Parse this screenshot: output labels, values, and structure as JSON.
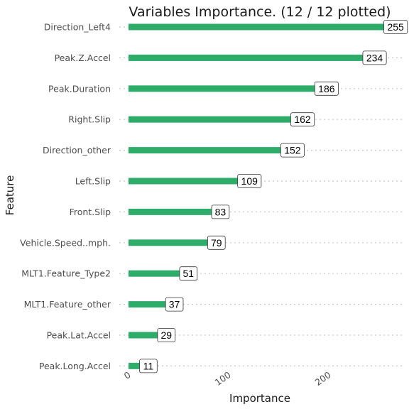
{
  "chart_data": {
    "type": "bar",
    "orientation": "horizontal",
    "title": "Variables Importance. (12 / 12 plotted)",
    "xlabel": "Importance",
    "ylabel": "Feature",
    "xlim": [
      0,
      257
    ],
    "xticks": [
      0,
      100,
      200
    ],
    "grid": "dotted horizontal gridlines per category",
    "bar_color": "#2EAD6A",
    "categories": [
      "Direction_Left4",
      "Peak.Z.Accel",
      "Peak.Duration",
      "Right.Slip",
      "Direction_other",
      "Left.Slip",
      "Front.Slip",
      "Vehicle.Speed..mph.",
      "MLT1.Feature_Type2",
      "MLT1.Feature_other",
      "Peak.Lat.Accel",
      "Peak.Long.Accel"
    ],
    "values": [
      255,
      234,
      186,
      162,
      152,
      109,
      83,
      79,
      51,
      37,
      29,
      11
    ],
    "data_labels": [
      "255",
      "234",
      "186",
      "162",
      "152",
      "109",
      "83",
      "79",
      "51",
      "37",
      "29",
      "11"
    ]
  }
}
